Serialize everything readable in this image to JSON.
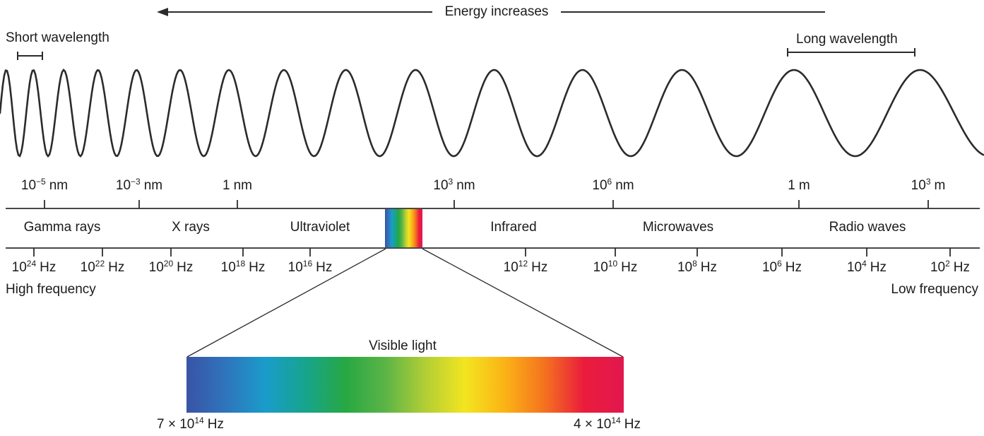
{
  "icons": {
    "energy_arrow_direction": "left"
  },
  "header": {
    "energy_label": "Energy increases",
    "short_wavelength": "Short wavelength",
    "long_wavelength": "Long wavelength"
  },
  "wavelength_scale": [
    {
      "base": "10",
      "exp": "−5",
      "unit": "nm"
    },
    {
      "base": "10",
      "exp": "−3",
      "unit": "nm"
    },
    {
      "base": "1",
      "exp": "",
      "unit": "nm"
    },
    {
      "base": "10",
      "exp": "3",
      "unit": "nm"
    },
    {
      "base": "10",
      "exp": "6",
      "unit": "nm"
    },
    {
      "base": "1",
      "exp": "",
      "unit": "m"
    },
    {
      "base": "10",
      "exp": "3",
      "unit": "m"
    }
  ],
  "bands": [
    "Gamma rays",
    "X rays",
    "Ultraviolet",
    "Infrared",
    "Microwaves",
    "Radio waves"
  ],
  "frequency_scale": [
    {
      "base": "10",
      "exp": "24",
      "unit": "Hz"
    },
    {
      "base": "10",
      "exp": "22",
      "unit": "Hz"
    },
    {
      "base": "10",
      "exp": "20",
      "unit": "Hz"
    },
    {
      "base": "10",
      "exp": "18",
      "unit": "Hz"
    },
    {
      "base": "10",
      "exp": "16",
      "unit": "Hz"
    },
    {
      "base": "10",
      "exp": "12",
      "unit": "Hz"
    },
    {
      "base": "10",
      "exp": "10",
      "unit": "Hz"
    },
    {
      "base": "10",
      "exp": "8",
      "unit": "Hz"
    },
    {
      "base": "10",
      "exp": "6",
      "unit": "Hz"
    },
    {
      "base": "10",
      "exp": "4",
      "unit": "Hz"
    },
    {
      "base": "10",
      "exp": "2",
      "unit": "Hz"
    }
  ],
  "frequency_ends": {
    "high": "High frequency",
    "low": "Low frequency"
  },
  "visible_light": {
    "label": "Visible light",
    "left_freq": {
      "coef": "7 × 10",
      "exp": "14",
      "unit": "Hz"
    },
    "right_freq": {
      "coef": "4 × 10",
      "exp": "14",
      "unit": "Hz"
    },
    "gradient": [
      "#3a53a5",
      "#2e75bd",
      "#1a9cca",
      "#17a48c",
      "#27a843",
      "#5bb447",
      "#b1ce35",
      "#f3e520",
      "#fbb316",
      "#f4731f",
      "#ea1c3c",
      "#e1184f"
    ]
  },
  "wave": {
    "stroke": "#2b2b2b"
  },
  "line_color": "#2e2e2e"
}
